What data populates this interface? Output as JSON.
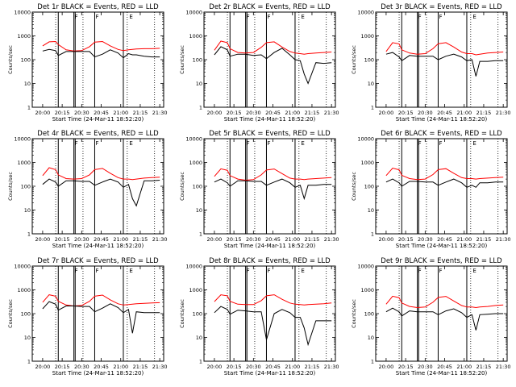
{
  "colors": {
    "events": "#000000",
    "lld": "#ff0000",
    "axis": "#000000"
  },
  "chart_data": {
    "type": "line",
    "layout": "3x3 grid",
    "y_scale": "log",
    "ylim": [
      1,
      10000
    ],
    "y_ticks": [
      1,
      10,
      100,
      1000,
      10000
    ],
    "x_ticks": [
      "20:00",
      "20:15",
      "20:30",
      "20:45",
      "21:00",
      "21:15",
      "21:30"
    ],
    "xlim": [
      "19:52",
      "21:33"
    ],
    "xlabel": "Start Time (24-Mar-11 18:52:20)",
    "ylabel": "Counts/sec",
    "dotted_lines_at": [
      "20:10",
      "20:31",
      "21:05",
      "21:26"
    ],
    "solid_lines_at": [
      "20:12",
      "20:24",
      "20:25",
      "20:40",
      "21:02"
    ],
    "flag_labels": [
      "F",
      "F",
      "E"
    ],
    "flag_positions": [
      "20:24",
      "20:40",
      "21:06"
    ],
    "panels": [
      {
        "title": "Det 1r BLACK = Events, RED = LLD",
        "series": [
          {
            "x": [
              "20:00",
              "20:05",
              "20:10",
              "20:12",
              "20:18",
              "20:24",
              "20:30",
              "20:36",
              "20:40",
              "20:46",
              "20:52",
              "20:58",
              "21:02",
              "21:06",
              "21:09",
              "21:12",
              "21:18",
              "21:24",
              "21:30"
            ],
            "events": [
              230,
              270,
              240,
              150,
              220,
              220,
              220,
              220,
              130,
              170,
              260,
              190,
              120,
              180,
              160,
              160,
              140,
              130,
              130
            ],
            "lld": [
              380,
              560,
              580,
              430,
              260,
              230,
              240,
              350,
              550,
              580,
              380,
              270,
              240,
              260,
              270,
              280,
              290,
              290,
              300
            ]
          }
        ]
      },
      {
        "title": "Det 2r BLACK = Events, RED = LLD",
        "series": [
          {
            "x": [
              "20:00",
              "20:05",
              "20:10",
              "20:12",
              "20:18",
              "20:24",
              "20:30",
              "20:36",
              "20:40",
              "20:46",
              "20:52",
              "20:58",
              "21:02",
              "21:06",
              "21:09",
              "21:12",
              "21:18",
              "21:24",
              "21:30"
            ],
            "events": [
              160,
              350,
              260,
              140,
              170,
              170,
              150,
              160,
              110,
              200,
              300,
              160,
              100,
              90,
              25,
              10,
              75,
              70,
              75
            ],
            "lld": [
              250,
              600,
              520,
              290,
              200,
              190,
              200,
              330,
              520,
              560,
              340,
              220,
              190,
              180,
              170,
              180,
              190,
              200,
              210
            ]
          }
        ]
      },
      {
        "title": "Det 3r BLACK = Events, RED = LLD",
        "series": [
          {
            "x": [
              "20:00",
              "20:05",
              "20:10",
              "20:12",
              "20:18",
              "20:24",
              "20:30",
              "20:36",
              "20:40",
              "20:46",
              "20:52",
              "20:58",
              "21:02",
              "21:06",
              "21:09",
              "21:12",
              "21:18",
              "21:24",
              "21:30"
            ],
            "events": [
              170,
              200,
              130,
              90,
              150,
              140,
              140,
              140,
              100,
              140,
              170,
              130,
              90,
              100,
              20,
              85,
              85,
              90,
              90
            ],
            "lld": [
              220,
              520,
              460,
              260,
              190,
              170,
              180,
              290,
              470,
              520,
              340,
              210,
              180,
              180,
              160,
              170,
              190,
              200,
              210
            ]
          }
        ]
      },
      {
        "title": "Det 4r BLACK = Events, RED = LLD",
        "series": [
          {
            "x": [
              "20:00",
              "20:05",
              "20:10",
              "20:12",
              "20:18",
              "20:24",
              "20:30",
              "20:36",
              "20:40",
              "20:46",
              "20:52",
              "20:58",
              "21:02",
              "21:06",
              "21:09",
              "21:12",
              "21:18",
              "21:24",
              "21:30"
            ],
            "events": [
              120,
              200,
              150,
              100,
              170,
              170,
              160,
              160,
              110,
              150,
              200,
              150,
              90,
              120,
              30,
              15,
              170,
              170,
              180
            ],
            "lld": [
              280,
              600,
              500,
              300,
              210,
              200,
              210,
              300,
              500,
              560,
              350,
              230,
              200,
              200,
              190,
              200,
              220,
              230,
              240
            ]
          }
        ]
      },
      {
        "title": "Det 5r BLACK = Events, RED = LLD",
        "series": [
          {
            "x": [
              "20:00",
              "20:05",
              "20:10",
              "20:12",
              "20:18",
              "20:24",
              "20:30",
              "20:36",
              "20:40",
              "20:46",
              "20:52",
              "20:58",
              "21:02",
              "21:06",
              "21:09",
              "21:12",
              "21:18",
              "21:24",
              "21:30"
            ],
            "events": [
              150,
              200,
              140,
              100,
              170,
              170,
              160,
              160,
              110,
              150,
              200,
              140,
              90,
              110,
              30,
              110,
              110,
              120,
              120
            ],
            "lld": [
              260,
              540,
              470,
              280,
              200,
              180,
              190,
              300,
              480,
              530,
              340,
              220,
              200,
              200,
              190,
              200,
              210,
              220,
              230
            ]
          }
        ]
      },
      {
        "title": "Det 6r BLACK = Events, RED = LLD",
        "series": [
          {
            "x": [
              "20:00",
              "20:05",
              "20:10",
              "20:12",
              "20:18",
              "20:24",
              "20:30",
              "20:36",
              "20:40",
              "20:46",
              "20:52",
              "20:58",
              "21:02",
              "21:06",
              "21:09",
              "21:12",
              "21:18",
              "21:24",
              "21:30"
            ],
            "events": [
              150,
              200,
              140,
              100,
              160,
              160,
              150,
              150,
              110,
              150,
              200,
              140,
              90,
              110,
              90,
              140,
              140,
              150,
              150
            ],
            "lld": [
              280,
              580,
              490,
              290,
              210,
              190,
              200,
              310,
              500,
              550,
              350,
              230,
              210,
              210,
              200,
              210,
              220,
              230,
              240
            ]
          }
        ]
      },
      {
        "title": "Det 7r BLACK = Events, RED = LLD",
        "series": [
          {
            "x": [
              "20:00",
              "20:05",
              "20:10",
              "20:12",
              "20:18",
              "20:24",
              "20:30",
              "20:36",
              "20:40",
              "20:46",
              "20:52",
              "20:58",
              "21:02",
              "21:06",
              "21:09",
              "21:12",
              "21:18",
              "21:24",
              "21:30"
            ],
            "events": [
              160,
              320,
              250,
              140,
              210,
              210,
              200,
              200,
              120,
              170,
              260,
              180,
              110,
              150,
              15,
              120,
              110,
              110,
              110
            ],
            "lld": [
              300,
              620,
              540,
              330,
              230,
              210,
              220,
              330,
              540,
              600,
              380,
              260,
              230,
              240,
              250,
              260,
              270,
              280,
              290
            ]
          }
        ]
      },
      {
        "title": "Det 8r BLACK = Events, RED = LLD",
        "series": [
          {
            "x": [
              "20:00",
              "20:05",
              "20:10",
              "20:12",
              "20:18",
              "20:24",
              "20:30",
              "20:36",
              "20:40",
              "20:46",
              "20:52",
              "20:58",
              "21:02",
              "21:06",
              "21:09",
              "21:12",
              "21:18",
              "21:24",
              "21:30"
            ],
            "events": [
              110,
              200,
              150,
              95,
              140,
              130,
              120,
              120,
              8,
              100,
              150,
              110,
              70,
              70,
              25,
              5,
              50,
              50,
              50
            ],
            "lld": [
              320,
              620,
              560,
              330,
              250,
              240,
              240,
              350,
              560,
              620,
              400,
              280,
              250,
              240,
              230,
              240,
              250,
              260,
              280
            ]
          }
        ]
      },
      {
        "title": "Det 9r BLACK = Events, RED = LLD",
        "series": [
          {
            "x": [
              "20:00",
              "20:05",
              "20:10",
              "20:12",
              "20:18",
              "20:24",
              "20:30",
              "20:36",
              "20:40",
              "20:46",
              "20:52",
              "20:58",
              "21:02",
              "21:06",
              "21:09",
              "21:12",
              "21:18",
              "21:24",
              "21:30"
            ],
            "events": [
              120,
              170,
              120,
              80,
              130,
              120,
              120,
              120,
              90,
              130,
              160,
              110,
              70,
              90,
              20,
              90,
              95,
              100,
              100
            ],
            "lld": [
              250,
              540,
              470,
              280,
              200,
              180,
              190,
              300,
              480,
              530,
              340,
              220,
              190,
              190,
              180,
              190,
              200,
              220,
              230
            ]
          }
        ]
      }
    ]
  }
}
